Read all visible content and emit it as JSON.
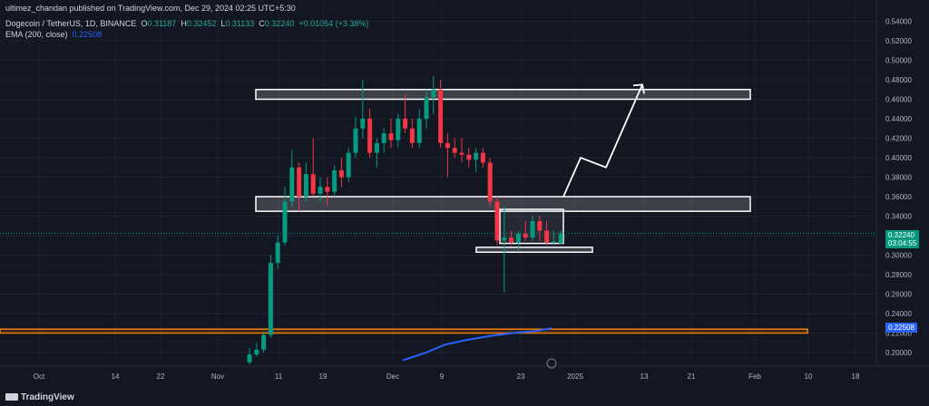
{
  "header": {
    "publisher": "ultimez_chandan published on TradingView.com, Dec 29, 2024 02:25 UTC+5:30",
    "symbol": "Dogecoin / TetherUS, 1D, BINANCE",
    "ohlc": {
      "o_label": "O",
      "o": "0.31187",
      "h_label": "H",
      "h": "0.32452",
      "l_label": "L",
      "l": "0.31133",
      "c_label": "C",
      "c": "0.32240",
      "change": "+0.01054 (+3.38%)"
    },
    "ema_label": "EMA (200, close)",
    "ema_value": "0.22508"
  },
  "price_tags": {
    "last_price": "0.32240",
    "countdown": "03:04:55",
    "ema": "0.22508"
  },
  "footer": {
    "brand": "TradingView"
  },
  "colors": {
    "background": "#131722",
    "up": "#089981",
    "down": "#f23645",
    "ema": "#2962ff",
    "support_band": "#f57c00",
    "zone_border": "#ffffff"
  },
  "chart_data": {
    "type": "candlestick",
    "symbol": "DOGE/USDT",
    "timeframe": "1D",
    "y_axis": {
      "range": [
        0.19,
        0.55
      ],
      "ticks": [
        "0.54000",
        "0.52000",
        "0.50000",
        "0.48000",
        "0.46000",
        "0.44000",
        "0.42000",
        "0.40000",
        "0.38000",
        "0.36000",
        "0.34000",
        "0.32000",
        "0.30000",
        "0.28000",
        "0.26000",
        "0.24000",
        "0.22000",
        "0.20000"
      ]
    },
    "x_axis": {
      "ticks": [
        "Oct",
        "14",
        "22",
        "Nov",
        "11",
        "19",
        "Dec",
        "9",
        "23",
        "2025",
        "13",
        "21",
        "Feb",
        "10",
        "18"
      ]
    },
    "candles_note": "daily OHLC estimated from chart, chronological from early Nov 2024",
    "candles": [
      {
        "o": 0.19,
        "h": 0.205,
        "l": 0.188,
        "c": 0.198
      },
      {
        "o": 0.198,
        "h": 0.21,
        "l": 0.196,
        "c": 0.203
      },
      {
        "o": 0.203,
        "h": 0.222,
        "l": 0.2,
        "c": 0.218
      },
      {
        "o": 0.218,
        "h": 0.3,
        "l": 0.215,
        "c": 0.292
      },
      {
        "o": 0.292,
        "h": 0.32,
        "l": 0.286,
        "c": 0.313
      },
      {
        "o": 0.313,
        "h": 0.37,
        "l": 0.31,
        "c": 0.355
      },
      {
        "o": 0.355,
        "h": 0.408,
        "l": 0.35,
        "c": 0.39
      },
      {
        "o": 0.39,
        "h": 0.395,
        "l": 0.345,
        "c": 0.36
      },
      {
        "o": 0.36,
        "h": 0.395,
        "l": 0.355,
        "c": 0.383
      },
      {
        "o": 0.383,
        "h": 0.42,
        "l": 0.36,
        "c": 0.363
      },
      {
        "o": 0.363,
        "h": 0.38,
        "l": 0.355,
        "c": 0.37
      },
      {
        "o": 0.37,
        "h": 0.38,
        "l": 0.35,
        "c": 0.365
      },
      {
        "o": 0.365,
        "h": 0.392,
        "l": 0.36,
        "c": 0.387
      },
      {
        "o": 0.387,
        "h": 0.4,
        "l": 0.37,
        "c": 0.38
      },
      {
        "o": 0.38,
        "h": 0.41,
        "l": 0.375,
        "c": 0.405
      },
      {
        "o": 0.405,
        "h": 0.442,
        "l": 0.4,
        "c": 0.43
      },
      {
        "o": 0.43,
        "h": 0.48,
        "l": 0.42,
        "c": 0.44
      },
      {
        "o": 0.44,
        "h": 0.45,
        "l": 0.4,
        "c": 0.405
      },
      {
        "o": 0.405,
        "h": 0.42,
        "l": 0.39,
        "c": 0.415
      },
      {
        "o": 0.415,
        "h": 0.43,
        "l": 0.405,
        "c": 0.425
      },
      {
        "o": 0.425,
        "h": 0.44,
        "l": 0.41,
        "c": 0.418
      },
      {
        "o": 0.418,
        "h": 0.445,
        "l": 0.41,
        "c": 0.44
      },
      {
        "o": 0.44,
        "h": 0.465,
        "l": 0.425,
        "c": 0.43
      },
      {
        "o": 0.43,
        "h": 0.44,
        "l": 0.41,
        "c": 0.415
      },
      {
        "o": 0.415,
        "h": 0.45,
        "l": 0.41,
        "c": 0.44
      },
      {
        "o": 0.44,
        "h": 0.47,
        "l": 0.43,
        "c": 0.462
      },
      {
        "o": 0.462,
        "h": 0.484,
        "l": 0.445,
        "c": 0.47
      },
      {
        "o": 0.47,
        "h": 0.48,
        "l": 0.41,
        "c": 0.415
      },
      {
        "o": 0.415,
        "h": 0.425,
        "l": 0.38,
        "c": 0.41
      },
      {
        "o": 0.41,
        "h": 0.42,
        "l": 0.4,
        "c": 0.405
      },
      {
        "o": 0.405,
        "h": 0.42,
        "l": 0.395,
        "c": 0.403
      },
      {
        "o": 0.403,
        "h": 0.41,
        "l": 0.39,
        "c": 0.398
      },
      {
        "o": 0.398,
        "h": 0.41,
        "l": 0.385,
        "c": 0.405
      },
      {
        "o": 0.405,
        "h": 0.41,
        "l": 0.39,
        "c": 0.395
      },
      {
        "o": 0.395,
        "h": 0.4,
        "l": 0.35,
        "c": 0.355
      },
      {
        "o": 0.355,
        "h": 0.36,
        "l": 0.31,
        "c": 0.315
      },
      {
        "o": 0.315,
        "h": 0.35,
        "l": 0.262,
        "c": 0.318
      },
      {
        "o": 0.318,
        "h": 0.325,
        "l": 0.31,
        "c": 0.313
      },
      {
        "o": 0.313,
        "h": 0.325,
        "l": 0.305,
        "c": 0.322
      },
      {
        "o": 0.322,
        "h": 0.335,
        "l": 0.315,
        "c": 0.318
      },
      {
        "o": 0.318,
        "h": 0.34,
        "l": 0.315,
        "c": 0.335
      },
      {
        "o": 0.335,
        "h": 0.34,
        "l": 0.315,
        "c": 0.325
      },
      {
        "o": 0.325,
        "h": 0.335,
        "l": 0.31,
        "c": 0.313
      },
      {
        "o": 0.313,
        "h": 0.325,
        "l": 0.31,
        "c": 0.314
      },
      {
        "o": 0.312,
        "h": 0.325,
        "l": 0.311,
        "c": 0.322
      }
    ],
    "ema_200": [
      0.192,
      0.2,
      0.208,
      0.213,
      0.217,
      0.22,
      0.222,
      0.225
    ],
    "annotations": {
      "resistance_zone": [
        0.46,
        0.47
      ],
      "mid_zone": [
        0.345,
        0.36
      ],
      "consolidation_box": [
        0.312,
        0.347
      ],
      "support_bar": [
        0.303,
        0.308
      ],
      "support_band_orange": [
        0.22,
        0.224
      ],
      "projection_path_prices": [
        0.36,
        0.4,
        0.39,
        0.475
      ],
      "last_price_line": 0.3224
    }
  }
}
